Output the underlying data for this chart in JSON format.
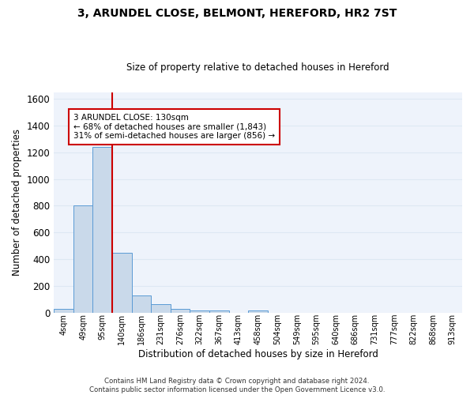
{
  "title": "3, ARUNDEL CLOSE, BELMONT, HEREFORD, HR2 7ST",
  "subtitle": "Size of property relative to detached houses in Hereford",
  "xlabel": "Distribution of detached houses by size in Hereford",
  "ylabel": "Number of detached properties",
  "bin_labels": [
    "4sqm",
    "49sqm",
    "95sqm",
    "140sqm",
    "186sqm",
    "231sqm",
    "276sqm",
    "322sqm",
    "367sqm",
    "413sqm",
    "458sqm",
    "504sqm",
    "549sqm",
    "595sqm",
    "640sqm",
    "686sqm",
    "731sqm",
    "777sqm",
    "822sqm",
    "868sqm",
    "913sqm"
  ],
  "bar_heights": [
    25,
    800,
    1240,
    450,
    130,
    60,
    25,
    15,
    15,
    0,
    15,
    0,
    0,
    0,
    0,
    0,
    0,
    0,
    0,
    0,
    0
  ],
  "bar_color": "#c9d9ea",
  "bar_edge_color": "#5b9bd5",
  "grid_color": "#dde8f3",
  "background_color": "#eef3fb",
  "vline_x_index": 2,
  "vline_color": "#cc0000",
  "annotation_text": "3 ARUNDEL CLOSE: 130sqm\n← 68% of detached houses are smaller (1,843)\n31% of semi-detached houses are larger (856) →",
  "annotation_box_color": "#ffffff",
  "annotation_box_edge": "#cc0000",
  "ylim": [
    0,
    1650
  ],
  "yticks": [
    0,
    200,
    400,
    600,
    800,
    1000,
    1200,
    1400,
    1600
  ],
  "footer": "Contains HM Land Registry data © Crown copyright and database right 2024.\nContains public sector information licensed under the Open Government Licence v3.0."
}
